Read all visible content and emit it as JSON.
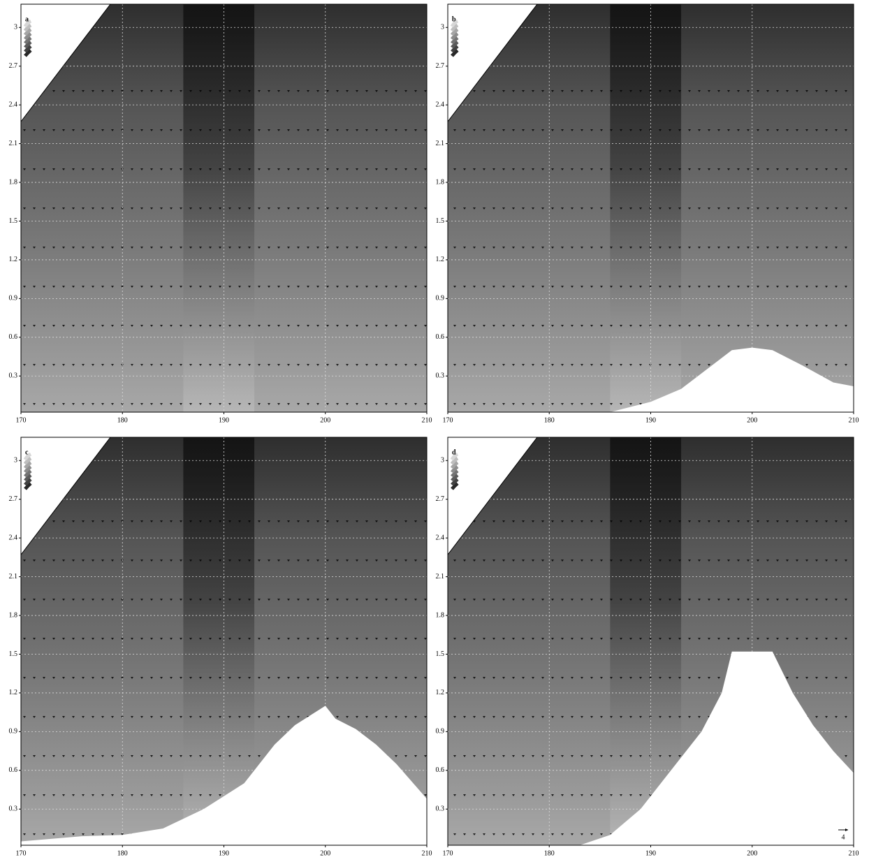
{
  "chart_data": [
    {
      "type": "contour",
      "label": "a",
      "xlim": [
        170,
        210
      ],
      "ylim": [
        0.02,
        3.18
      ],
      "xticks": [
        170,
        180,
        190,
        200,
        210
      ],
      "yticks": [
        0.3,
        0.6,
        0.9,
        1.2,
        1.5,
        1.8,
        2.1,
        2.4,
        2.7,
        3
      ],
      "grid": true
    },
    {
      "type": "contour",
      "label": "b",
      "xlim": [
        170,
        210
      ],
      "ylim": [
        0.02,
        3.18
      ],
      "xticks": [
        170,
        180,
        190,
        200,
        210
      ],
      "yticks": [
        0.3,
        0.6,
        0.9,
        1.2,
        1.5,
        1.8,
        2.1,
        2.4,
        2.7,
        3
      ],
      "grid": true,
      "terrain": {
        "x": [
          186,
          190,
          193,
          196,
          198,
          200,
          202,
          205,
          208,
          210
        ],
        "y": [
          0.02,
          0.1,
          0.2,
          0.38,
          0.5,
          0.52,
          0.5,
          0.38,
          0.25,
          0.22
        ]
      }
    },
    {
      "type": "contour",
      "label": "c",
      "xlim": [
        170,
        210
      ],
      "ylim": [
        0.02,
        3.18
      ],
      "xticks": [
        170,
        180,
        190,
        200,
        210
      ],
      "yticks": [
        0.3,
        0.6,
        0.9,
        1.2,
        1.5,
        1.8,
        2.1,
        2.4,
        2.7,
        3
      ],
      "grid": true,
      "terrain": {
        "x": [
          170,
          176,
          180,
          184,
          188,
          192,
          195,
          197,
          199,
          200,
          201,
          203,
          205,
          207,
          210
        ],
        "y": [
          0.05,
          0.09,
          0.1,
          0.15,
          0.3,
          0.5,
          0.8,
          0.95,
          1.05,
          1.1,
          1.0,
          0.92,
          0.8,
          0.65,
          0.38
        ]
      }
    },
    {
      "type": "contour",
      "label": "d",
      "xlim": [
        170,
        210
      ],
      "ylim": [
        0.02,
        3.18
      ],
      "xticks": [
        170,
        180,
        190,
        200,
        210
      ],
      "yticks": [
        0.3,
        0.6,
        0.9,
        1.2,
        1.5,
        1.8,
        2.1,
        2.4,
        2.7,
        3
      ],
      "grid": true,
      "terrain": {
        "x": [
          183,
          186,
          189,
          192,
          195,
          197,
          198,
          202,
          204,
          206,
          208,
          210
        ],
        "y": [
          0.02,
          0.1,
          0.3,
          0.6,
          0.9,
          1.2,
          1.52,
          1.52,
          1.2,
          0.95,
          0.75,
          0.58
        ]
      },
      "annotation": "4"
    }
  ]
}
